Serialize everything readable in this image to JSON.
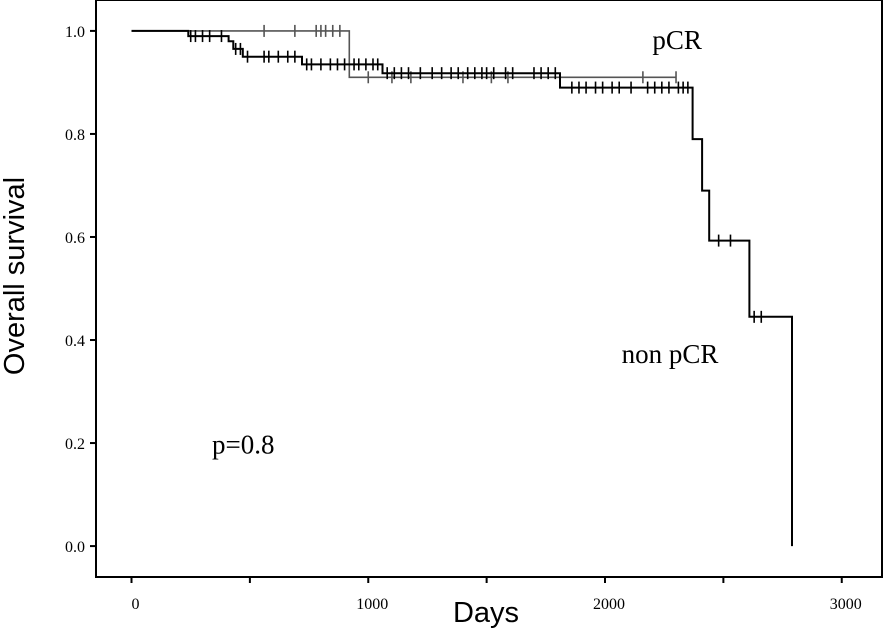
{
  "chart_data": {
    "type": "line",
    "title": "",
    "xlabel": "Days",
    "ylabel": "Overall survival",
    "xlim": [
      -150,
      3170
    ],
    "ylim": [
      -0.06,
      1.06
    ],
    "xticks": [
      0,
      1000,
      2000,
      3000
    ],
    "xtick_labels": [
      "0",
      "1000",
      "2000",
      "3000"
    ],
    "xminor_ticks": [
      500,
      1500,
      2500
    ],
    "yticks": [
      0.0,
      0.2,
      0.4,
      0.6,
      0.8,
      1.0
    ],
    "ytick_labels": [
      "0.0",
      "0.2",
      "0.4",
      "0.6",
      "0.8",
      "1.0"
    ],
    "grid": false,
    "legend": "none",
    "series": [
      {
        "name": "pCR",
        "line_color": "#555555",
        "steps": [
          [
            0,
            1.0
          ],
          [
            920,
            1.0
          ],
          [
            920,
            0.91
          ],
          [
            2300,
            0.91
          ]
        ],
        "censors": [
          [
            560,
            1.0
          ],
          [
            690,
            1.0
          ],
          [
            780,
            1.0
          ],
          [
            800,
            1.0
          ],
          [
            820,
            1.0
          ],
          [
            850,
            1.0
          ],
          [
            880,
            1.0
          ],
          [
            1000,
            0.91
          ],
          [
            1100,
            0.91
          ],
          [
            1180,
            0.91
          ],
          [
            1400,
            0.91
          ],
          [
            1520,
            0.91
          ],
          [
            1590,
            0.91
          ],
          [
            2160,
            0.91
          ],
          [
            2300,
            0.91
          ]
        ]
      },
      {
        "name": "non pCR",
        "line_color": "#000000",
        "steps": [
          [
            0,
            1.0
          ],
          [
            240,
            1.0
          ],
          [
            240,
            0.99
          ],
          [
            410,
            0.99
          ],
          [
            410,
            0.98
          ],
          [
            430,
            0.98
          ],
          [
            430,
            0.965
          ],
          [
            470,
            0.965
          ],
          [
            470,
            0.95
          ],
          [
            720,
            0.95
          ],
          [
            720,
            0.935
          ],
          [
            1060,
            0.935
          ],
          [
            1060,
            0.918
          ],
          [
            1810,
            0.918
          ],
          [
            1810,
            0.89
          ],
          [
            2370,
            0.89
          ],
          [
            2370,
            0.79
          ],
          [
            2410,
            0.79
          ],
          [
            2410,
            0.69
          ],
          [
            2440,
            0.69
          ],
          [
            2440,
            0.593
          ],
          [
            2610,
            0.593
          ],
          [
            2610,
            0.445
          ],
          [
            2790,
            0.445
          ],
          [
            2790,
            0.0
          ]
        ],
        "censors": [
          [
            250,
            0.99
          ],
          [
            270,
            0.99
          ],
          [
            300,
            0.99
          ],
          [
            330,
            0.99
          ],
          [
            380,
            0.99
          ],
          [
            440,
            0.965
          ],
          [
            460,
            0.965
          ],
          [
            490,
            0.95
          ],
          [
            560,
            0.95
          ],
          [
            580,
            0.95
          ],
          [
            620,
            0.95
          ],
          [
            660,
            0.95
          ],
          [
            690,
            0.95
          ],
          [
            740,
            0.935
          ],
          [
            760,
            0.935
          ],
          [
            800,
            0.935
          ],
          [
            840,
            0.935
          ],
          [
            870,
            0.935
          ],
          [
            900,
            0.935
          ],
          [
            940,
            0.935
          ],
          [
            960,
            0.935
          ],
          [
            990,
            0.935
          ],
          [
            1020,
            0.935
          ],
          [
            1040,
            0.935
          ],
          [
            1080,
            0.918
          ],
          [
            1110,
            0.918
          ],
          [
            1140,
            0.918
          ],
          [
            1170,
            0.918
          ],
          [
            1220,
            0.918
          ],
          [
            1270,
            0.918
          ],
          [
            1310,
            0.918
          ],
          [
            1350,
            0.918
          ],
          [
            1380,
            0.918
          ],
          [
            1420,
            0.918
          ],
          [
            1450,
            0.918
          ],
          [
            1480,
            0.918
          ],
          [
            1500,
            0.918
          ],
          [
            1530,
            0.918
          ],
          [
            1580,
            0.918
          ],
          [
            1610,
            0.918
          ],
          [
            1700,
            0.918
          ],
          [
            1730,
            0.918
          ],
          [
            1760,
            0.918
          ],
          [
            1790,
            0.918
          ],
          [
            1860,
            0.89
          ],
          [
            1890,
            0.89
          ],
          [
            1920,
            0.89
          ],
          [
            1960,
            0.89
          ],
          [
            1990,
            0.89
          ],
          [
            2030,
            0.89
          ],
          [
            2060,
            0.89
          ],
          [
            2110,
            0.89
          ],
          [
            2180,
            0.89
          ],
          [
            2210,
            0.89
          ],
          [
            2240,
            0.89
          ],
          [
            2270,
            0.89
          ],
          [
            2310,
            0.89
          ],
          [
            2330,
            0.89
          ],
          [
            2350,
            0.89
          ],
          [
            2480,
            0.593
          ],
          [
            2530,
            0.593
          ],
          [
            2630,
            0.445
          ],
          [
            2660,
            0.445
          ]
        ]
      }
    ],
    "annotations": [
      {
        "text": "pCR",
        "x": 2200,
        "y": 0.965
      },
      {
        "text": "non pCR",
        "x": 2070,
        "y": 0.355
      },
      {
        "text": "p=0.8",
        "x": 340,
        "y": 0.18
      }
    ]
  }
}
